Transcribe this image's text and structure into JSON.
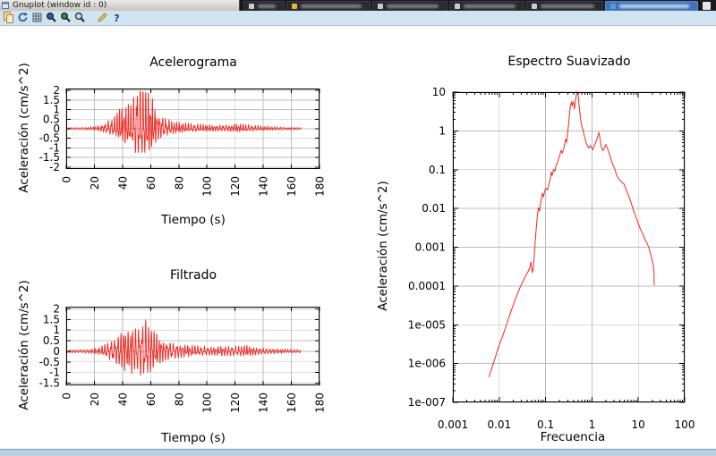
{
  "window": {
    "title": "Gnuplot (window id : 0)"
  },
  "browser_tabs": {
    "labels_blurred": true,
    "bar_color": "#17191d",
    "new_tab_button_color": "#e3e6ea",
    "tabs": [
      {
        "label": "",
        "width": 46,
        "favicon_color": "#c7ccd4",
        "active": false
      },
      {
        "label": "",
        "width": 94,
        "favicon_color": "#e7b43c",
        "active": false
      },
      {
        "label": "",
        "width": 84,
        "favicon_color": "#c7ccd4",
        "active": false
      },
      {
        "label": "",
        "width": 84,
        "favicon_color": "#c7ccd4",
        "active": false
      },
      {
        "label": "",
        "width": 86,
        "favicon_color": "#c7ccd4",
        "active": false
      },
      {
        "label": "",
        "width": 104,
        "favicon_color": "#5c96e0",
        "active": true
      }
    ]
  },
  "toolbar": {
    "buttons": [
      {
        "icon": "copy-icon"
      },
      {
        "icon": "replot-icon"
      },
      {
        "icon": "grid-icon"
      },
      {
        "icon": "zoom-previous-icon"
      },
      {
        "icon": "zoom-next-icon"
      },
      {
        "icon": "autoscale-icon"
      },
      {
        "icon": "configure-icon",
        "gap_before": true
      },
      {
        "icon": "help-icon"
      }
    ]
  },
  "colors": {
    "line": "#ef2a24",
    "grid": "#bdbdbd",
    "axis": "#000000",
    "toolbar_bg": "#cfe3f1",
    "bottom_strip": "#b9cfe2",
    "canvas": "#ffffff"
  },
  "chart_data": [
    {
      "type": "line",
      "title": "Acelerograma",
      "xlabel": "Tiempo (s)",
      "ylabel": "Aceleración (cm/s^2)",
      "xlim": [
        0,
        180
      ],
      "ylim": [
        -2.1,
        2.1
      ],
      "xticks": [
        0,
        20,
        40,
        60,
        80,
        100,
        120,
        140,
        160,
        180
      ],
      "yticks": [
        -2,
        -1.5,
        -1,
        -0.5,
        0,
        0.5,
        1,
        1.5,
        2
      ],
      "grid": true,
      "xtick_rotation": 90,
      "description": "Seismic accelerogram; weak coda until ~25 s, strong phase 30-70 s, positive peaks clipped at top of range between ~48-62 s, trace ends near t=167 s",
      "envelope": [
        [
          0,
          0.06
        ],
        [
          8,
          0.06
        ],
        [
          15,
          0.09
        ],
        [
          20,
          0.12
        ],
        [
          24,
          0.18
        ],
        [
          28,
          0.35
        ],
        [
          32,
          0.5
        ],
        [
          35,
          0.7
        ],
        [
          37,
          1.0
        ],
        [
          40,
          1.15
        ],
        [
          43,
          1.35
        ],
        [
          46,
          1.25
        ],
        [
          48,
          1.8
        ],
        [
          50,
          2.3
        ],
        [
          53,
          2.55
        ],
        [
          55,
          2.6
        ],
        [
          57,
          2.4
        ],
        [
          59,
          2.0
        ],
        [
          61,
          1.7
        ],
        [
          63,
          1.25
        ],
        [
          66,
          0.85
        ],
        [
          70,
          0.6
        ],
        [
          75,
          0.42
        ],
        [
          80,
          0.34
        ],
        [
          88,
          0.27
        ],
        [
          95,
          0.23
        ],
        [
          105,
          0.2
        ],
        [
          115,
          0.2
        ],
        [
          122,
          0.27
        ],
        [
          128,
          0.22
        ],
        [
          135,
          0.17
        ],
        [
          145,
          0.12
        ],
        [
          155,
          0.09
        ],
        [
          163,
          0.07
        ],
        [
          167,
          0.06
        ]
      ],
      "synthesis": {
        "dt": 0.08,
        "t_end": 167,
        "a1": 0.65,
        "a2": 0.35,
        "f1": 0.54,
        "f2": 1.08,
        "m1": 2.4,
        "m2": 1.8,
        "mf1": 0.31,
        "mf2": 0.17,
        "p1": 0.4,
        "p2": 2.1,
        "pos_gain": 1.0,
        "neg_gain": 0.62,
        "ceiling": {
          "t0": 48,
          "t1": 62.5,
          "v0": 2.04,
          "v1": 1.76
        }
      }
    },
    {
      "type": "line",
      "title": "Filtrado",
      "xlabel": "Tiempo (s)",
      "ylabel": "Aceleración (cm/s^2)",
      "xlim": [
        0,
        180
      ],
      "ylim": [
        -1.6,
        2.1
      ],
      "xticks": [
        0,
        20,
        40,
        60,
        80,
        100,
        120,
        140,
        160,
        180
      ],
      "yticks": [
        -1.5,
        -1,
        -0.5,
        0,
        0.5,
        1,
        1.5,
        2
      ],
      "grid": true,
      "xtick_rotation": 90,
      "description": "Filtered accelerogram; max ~+1.55 cm/s^2 near t=56 s, min ~-1.35 cm/s^2, trace ends near t=167 s",
      "envelope": [
        [
          0,
          0.07
        ],
        [
          10,
          0.07
        ],
        [
          18,
          0.1
        ],
        [
          24,
          0.16
        ],
        [
          28,
          0.3
        ],
        [
          32,
          0.42
        ],
        [
          35,
          0.55
        ],
        [
          38,
          0.75
        ],
        [
          41,
          0.95
        ],
        [
          44,
          0.8
        ],
        [
          47,
          1.1
        ],
        [
          50,
          0.95
        ],
        [
          53,
          1.15
        ],
        [
          55,
          1.3
        ],
        [
          57,
          1.25
        ],
        [
          60,
          1.05
        ],
        [
          63,
          0.8
        ],
        [
          66,
          0.6
        ],
        [
          70,
          0.45
        ],
        [
          75,
          0.35
        ],
        [
          80,
          0.3
        ],
        [
          88,
          0.24
        ],
        [
          95,
          0.2
        ],
        [
          105,
          0.18
        ],
        [
          113,
          0.22
        ],
        [
          120,
          0.2
        ],
        [
          127,
          0.24
        ],
        [
          133,
          0.18
        ],
        [
          140,
          0.13
        ],
        [
          150,
          0.1
        ],
        [
          160,
          0.08
        ],
        [
          167,
          0.07
        ]
      ],
      "synthesis": {
        "dt": 0.08,
        "t_end": 167,
        "a1": 0.65,
        "a2": 0.35,
        "f1": 0.5,
        "f2": 1.0,
        "m1": 2.2,
        "m2": 1.7,
        "mf1": 0.29,
        "mf2": 0.19,
        "p1": 1.3,
        "p2": 0.2,
        "pos_gain": 1.18,
        "neg_gain": 1.0,
        "ceiling": null
      }
    },
    {
      "type": "line",
      "title": "Espectro Suavizado",
      "xlabel": "Frecuencia",
      "ylabel": "Aceleración (cm/s^2)",
      "xscale": "log",
      "yscale": "log",
      "xlim": [
        0.001,
        100
      ],
      "ylim": [
        1e-07,
        10
      ],
      "xtick_labels": [
        "0.001",
        "0.01",
        "0.1",
        "1",
        "10",
        "100"
      ],
      "ytick_labels": [
        "10",
        "1",
        "0.1",
        "0.01",
        "0.001",
        "0.0001",
        "1e-005",
        "1e-006",
        "1e-007"
      ],
      "grid": true,
      "description": "Smoothed Fourier amplitude spectrum; power-law rise from (0.006, 4.5e-7), notch near 0.05 Hz, peak ~10 at ~0.5 Hz, secondary spike ~0.9 at 1.4 Hz, decays to ~1e-4 at 22 Hz",
      "points": [
        [
          0.006,
          4.5e-07
        ],
        [
          0.008,
          1.3e-06
        ],
        [
          0.01,
          3e-06
        ],
        [
          0.013,
          7e-06
        ],
        [
          0.016,
          1.5e-05
        ],
        [
          0.02,
          3.2e-05
        ],
        [
          0.025,
          6.5e-05
        ],
        [
          0.03,
          0.00011
        ],
        [
          0.036,
          0.00017
        ],
        [
          0.042,
          0.00024
        ],
        [
          0.046,
          0.0003
        ],
        [
          0.048,
          0.00042
        ],
        [
          0.05,
          0.0003
        ],
        [
          0.052,
          0.00022
        ],
        [
          0.055,
          0.00032
        ],
        [
          0.058,
          0.0009
        ],
        [
          0.062,
          0.0025
        ],
        [
          0.066,
          0.006
        ],
        [
          0.07,
          0.0105
        ],
        [
          0.074,
          0.0085
        ],
        [
          0.079,
          0.015
        ],
        [
          0.085,
          0.024
        ],
        [
          0.09,
          0.02
        ],
        [
          0.096,
          0.029
        ],
        [
          0.103,
          0.033
        ],
        [
          0.11,
          0.03
        ],
        [
          0.118,
          0.044
        ],
        [
          0.126,
          0.056
        ],
        [
          0.132,
          0.088
        ],
        [
          0.138,
          0.07
        ],
        [
          0.148,
          0.1
        ],
        [
          0.158,
          0.09
        ],
        [
          0.17,
          0.13
        ],
        [
          0.185,
          0.17
        ],
        [
          0.2,
          0.22
        ],
        [
          0.215,
          0.31
        ],
        [
          0.23,
          0.27
        ],
        [
          0.25,
          0.38
        ],
        [
          0.27,
          0.6
        ],
        [
          0.285,
          0.52
        ],
        [
          0.3,
          0.9
        ],
        [
          0.315,
          1.6
        ],
        [
          0.33,
          3.0
        ],
        [
          0.345,
          4.6
        ],
        [
          0.36,
          5.4
        ],
        [
          0.375,
          4.4
        ],
        [
          0.39,
          5.6
        ],
        [
          0.405,
          5.0
        ],
        [
          0.42,
          3.6
        ],
        [
          0.44,
          6.0
        ],
        [
          0.46,
          8.2
        ],
        [
          0.48,
          10.5
        ],
        [
          0.5,
          9.2
        ],
        [
          0.52,
          5.5
        ],
        [
          0.545,
          3.2
        ],
        [
          0.57,
          2.0
        ],
        [
          0.6,
          1.4
        ],
        [
          0.64,
          1.05
        ],
        [
          0.68,
          0.78
        ],
        [
          0.72,
          0.6
        ],
        [
          0.76,
          0.47
        ],
        [
          0.81,
          0.4
        ],
        [
          0.86,
          0.36
        ],
        [
          0.92,
          0.42
        ],
        [
          0.98,
          0.37
        ],
        [
          1.05,
          0.33
        ],
        [
          1.13,
          0.42
        ],
        [
          1.22,
          0.52
        ],
        [
          1.32,
          0.7
        ],
        [
          1.42,
          0.92
        ],
        [
          1.5,
          0.6
        ],
        [
          1.6,
          0.38
        ],
        [
          1.72,
          0.31
        ],
        [
          1.85,
          0.36
        ],
        [
          2.0,
          0.44
        ],
        [
          2.15,
          0.36
        ],
        [
          2.35,
          0.26
        ],
        [
          2.6,
          0.18
        ],
        [
          2.85,
          0.13
        ],
        [
          3.1,
          0.105
        ],
        [
          3.4,
          0.072
        ],
        [
          3.75,
          0.058
        ],
        [
          4.1,
          0.052
        ],
        [
          4.5,
          0.046
        ],
        [
          4.9,
          0.043
        ],
        [
          5.4,
          0.032
        ],
        [
          5.9,
          0.024
        ],
        [
          6.5,
          0.018
        ],
        [
          7.2,
          0.0125
        ],
        [
          8.0,
          0.0085
        ],
        [
          8.9,
          0.006
        ],
        [
          9.9,
          0.0042
        ],
        [
          11.0,
          0.003
        ],
        [
          12.2,
          0.0023
        ],
        [
          13.6,
          0.0017
        ],
        [
          15.2,
          0.0013
        ],
        [
          16.9,
          0.001
        ],
        [
          18.2,
          0.0007
        ],
        [
          19.4,
          0.00052
        ],
        [
          20.5,
          0.0004
        ],
        [
          21.3,
          0.00032
        ],
        [
          21.8,
          0.00021
        ],
        [
          22.0,
          0.000105
        ]
      ]
    }
  ]
}
